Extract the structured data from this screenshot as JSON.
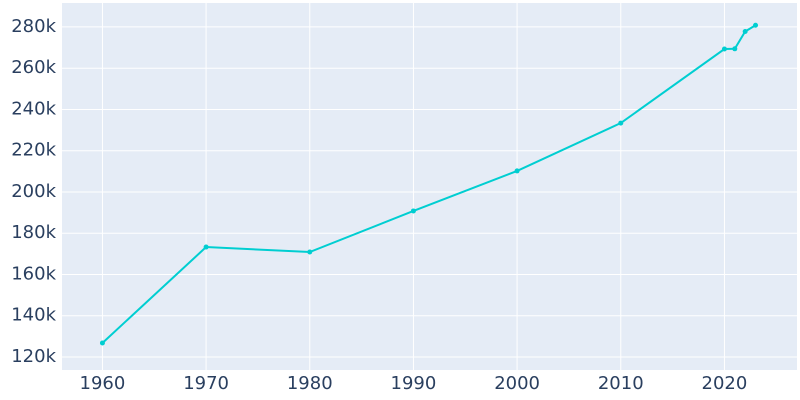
{
  "chart_data": {
    "type": "line",
    "x": [
      1960,
      1970,
      1980,
      1990,
      2000,
      2010,
      2020,
      2021,
      2022,
      2023
    ],
    "series": [
      {
        "color": "#00ced1",
        "values": [
          126800,
          173300,
          170900,
          190800,
          210200,
          233400,
          269300,
          269400,
          277800,
          280800
        ]
      }
    ],
    "xlim": [
      1956.1,
      2027
    ],
    "ylim": [
      113700,
      291600
    ],
    "xticks": [
      1960,
      1970,
      1980,
      1990,
      2000,
      2010,
      2020
    ],
    "yticks": [
      {
        "value": 120000,
        "label": "120k"
      },
      {
        "value": 140000,
        "label": "140k"
      },
      {
        "value": 160000,
        "label": "160k"
      },
      {
        "value": 180000,
        "label": "180k"
      },
      {
        "value": 200000,
        "label": "200k"
      },
      {
        "value": 220000,
        "label": "220k"
      },
      {
        "value": 240000,
        "label": "240k"
      },
      {
        "value": 260000,
        "label": "260k"
      },
      {
        "value": 280000,
        "label": "280k"
      }
    ],
    "grid": true,
    "markers": true
  }
}
